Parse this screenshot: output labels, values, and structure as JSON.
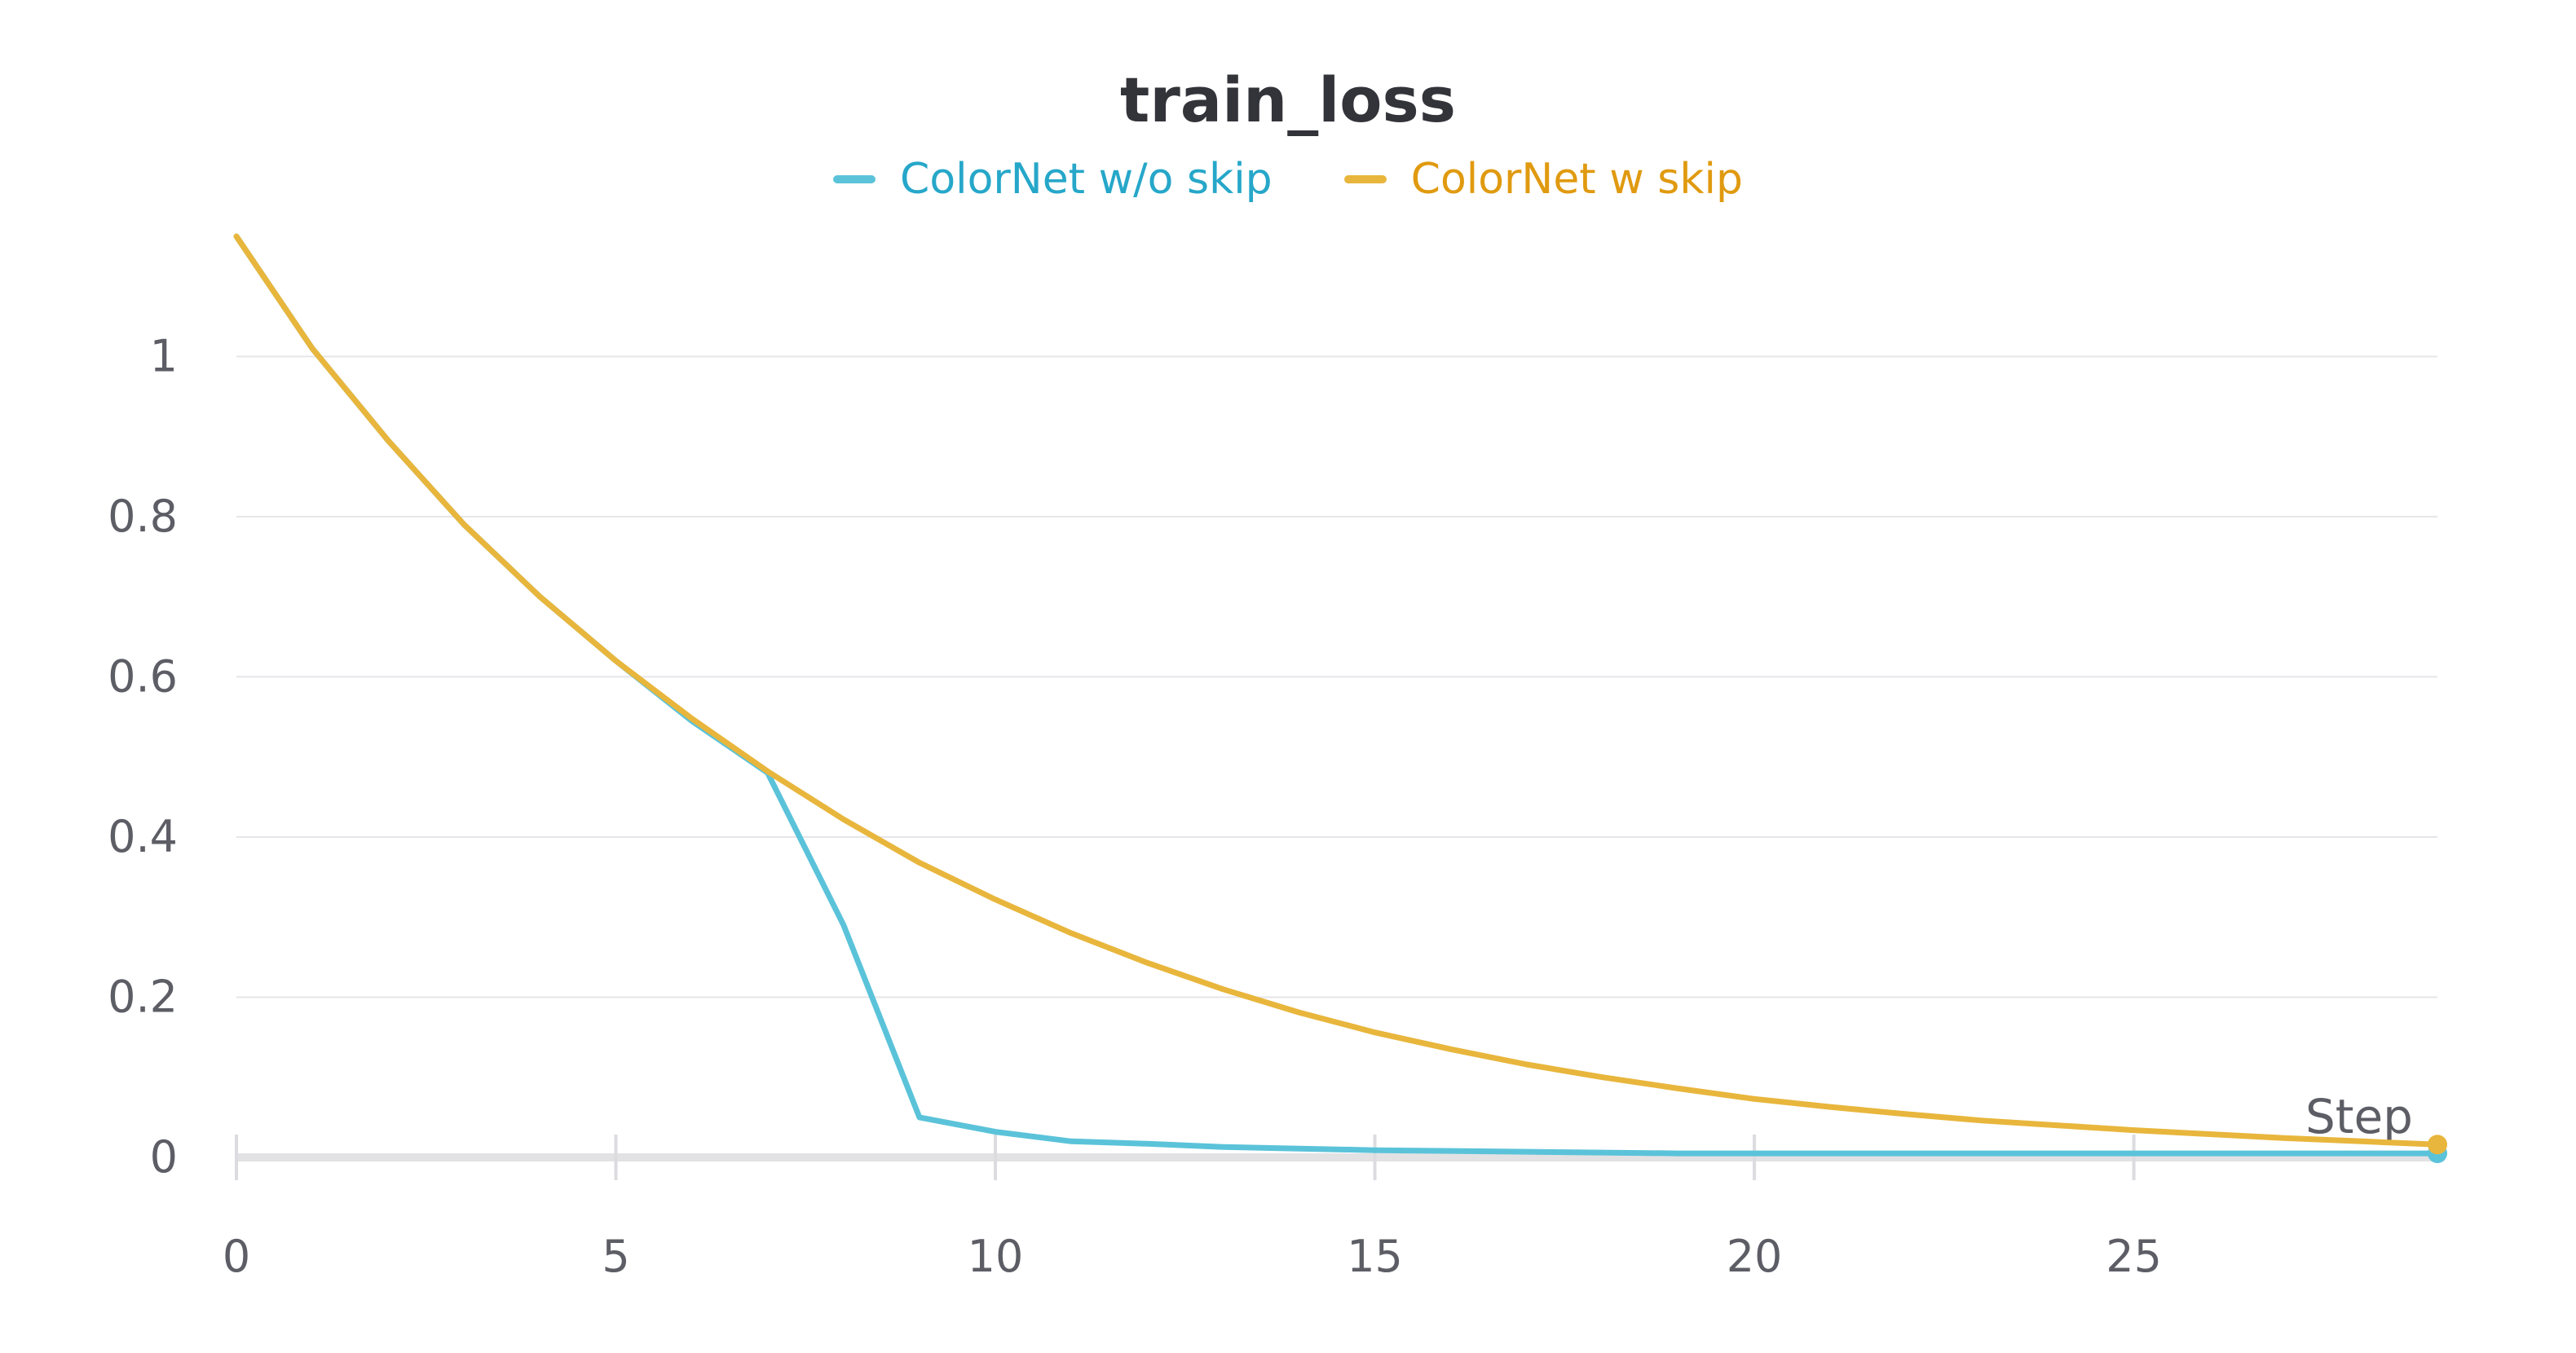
{
  "chart_data": {
    "type": "line",
    "title": "train_loss",
    "xlabel": "Step",
    "ylabel": "",
    "xlim": [
      0,
      29
    ],
    "ylim": [
      0,
      1.15
    ],
    "x_ticks": [
      0,
      5,
      10,
      15,
      20,
      25
    ],
    "y_ticks": [
      0,
      0.2,
      0.4,
      0.6,
      0.8,
      1
    ],
    "y_tick_labels": [
      "0",
      "0.2",
      "0.4",
      "0.6",
      "0.8",
      "1"
    ],
    "grid": true,
    "legend_position": "top-center",
    "x": [
      0,
      1,
      2,
      3,
      4,
      5,
      6,
      7,
      8,
      9,
      10,
      11,
      12,
      13,
      14,
      15,
      16,
      17,
      18,
      19,
      20,
      21,
      22,
      23,
      24,
      25,
      26,
      27,
      28,
      29
    ],
    "series": [
      {
        "name": "ColorNet w/o skip",
        "color": "#5bc3d9",
        "legend_text_color": "#26a7c9",
        "values": [
          1.15,
          1.01,
          0.895,
          0.79,
          0.7,
          0.62,
          0.545,
          0.48,
          0.29,
          0.05,
          0.032,
          0.02,
          0.017,
          0.013,
          0.011,
          0.009,
          0.008,
          0.007,
          0.006,
          0.005,
          0.005,
          0.005,
          0.005,
          0.005,
          0.005,
          0.005,
          0.005,
          0.005,
          0.005,
          0.005
        ]
      },
      {
        "name": "ColorNet w skip",
        "color": "#e8b63c",
        "legend_text_color": "#e09a10",
        "values": [
          1.15,
          1.01,
          0.895,
          0.79,
          0.7,
          0.62,
          0.548,
          0.482,
          0.422,
          0.368,
          0.322,
          0.28,
          0.243,
          0.21,
          0.181,
          0.156,
          0.135,
          0.116,
          0.1,
          0.086,
          0.073,
          0.063,
          0.054,
          0.046,
          0.04,
          0.034,
          0.029,
          0.024,
          0.02,
          0.016
        ]
      }
    ]
  }
}
